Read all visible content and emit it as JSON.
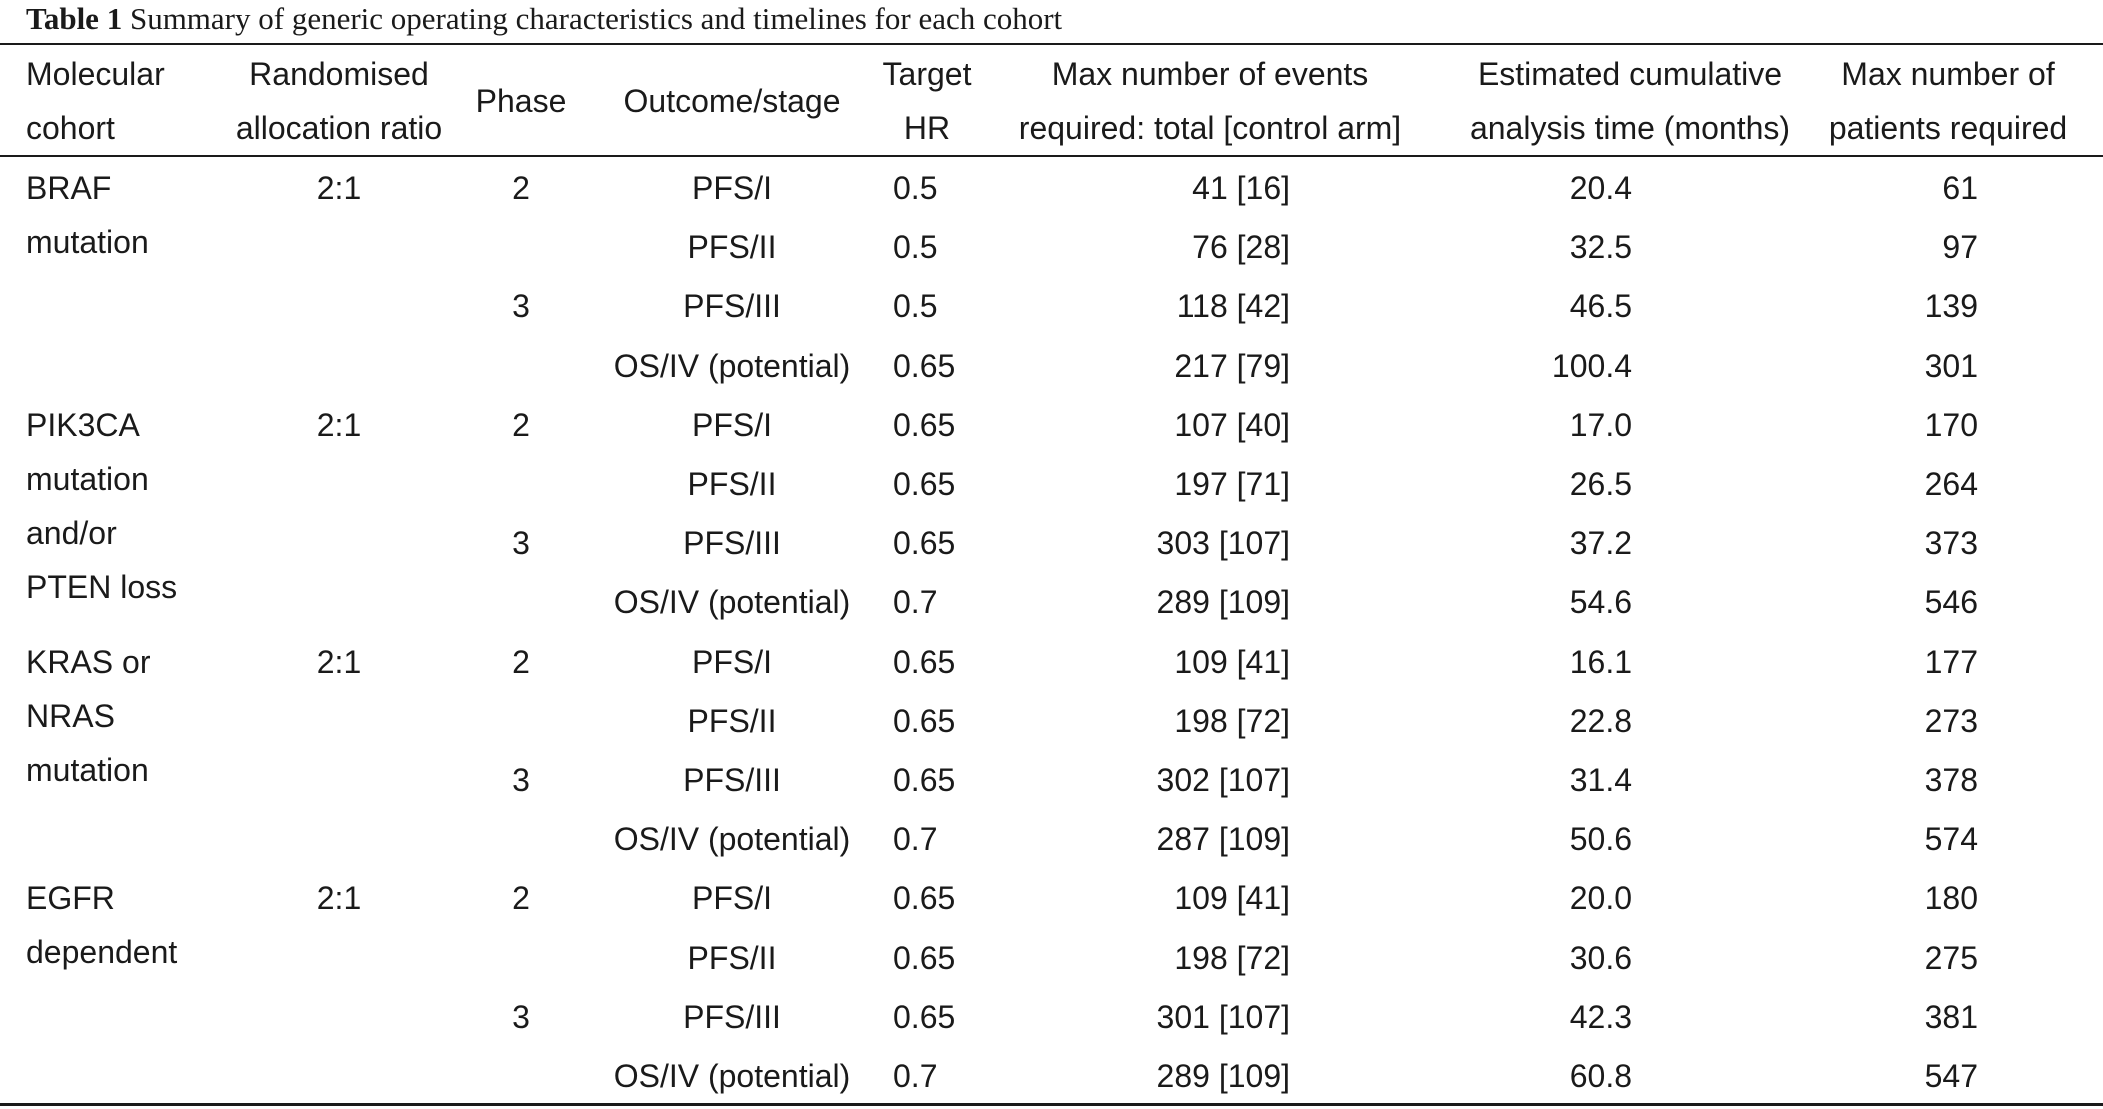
{
  "caption": {
    "label": "Table 1",
    "text": "Summary of generic operating characteristics and timelines for each cohort"
  },
  "headers": {
    "cohort": [
      "Molecular",
      "cohort"
    ],
    "ratio": [
      "Randomised",
      "allocation ratio"
    ],
    "phase": "Phase",
    "outcome": "Outcome/stage",
    "hr": [
      "Target",
      "HR"
    ],
    "events": [
      "Max number of events",
      "required: total [control arm]"
    ],
    "time": [
      "Estimated cumulative",
      "analysis time (months)"
    ],
    "patients": [
      "Max number of",
      "patients required"
    ]
  },
  "groups": [
    {
      "cohort": [
        "BRAF",
        "mutation"
      ],
      "ratio": "2:1",
      "rows": [
        {
          "phase": "2",
          "outcome": "PFS/I",
          "hr": "0.5",
          "events": "41 [16]",
          "time": "20.4",
          "patients": "61"
        },
        {
          "phase": "",
          "outcome": "PFS/II",
          "hr": "0.5",
          "events": "76 [28]",
          "time": "32.5",
          "patients": "97"
        },
        {
          "phase": "3",
          "outcome": "PFS/III",
          "hr": "0.5",
          "events": "118 [42]",
          "time": "46.5",
          "patients": "139"
        },
        {
          "phase": "",
          "outcome": "OS/IV (potential)",
          "hr": "0.65",
          "events": "217 [79]",
          "time": "100.4",
          "patients": "301"
        }
      ]
    },
    {
      "cohort": [
        "PIK3CA",
        "mutation",
        "and/or",
        "PTEN loss"
      ],
      "ratio": "2:1",
      "rows": [
        {
          "phase": "2",
          "outcome": "PFS/I",
          "hr": "0.65",
          "events": "107 [40]",
          "time": "17.0",
          "patients": "170"
        },
        {
          "phase": "",
          "outcome": "PFS/II",
          "hr": "0.65",
          "events": "197 [71]",
          "time": "26.5",
          "patients": "264"
        },
        {
          "phase": "3",
          "outcome": "PFS/III",
          "hr": "0.65",
          "events": "303 [107]",
          "time": "37.2",
          "patients": "373"
        },
        {
          "phase": "",
          "outcome": "OS/IV (potential)",
          "hr": "0.7",
          "events": "289 [109]",
          "time": "54.6",
          "patients": "546"
        }
      ]
    },
    {
      "cohort": [
        "KRAS or",
        "NRAS",
        "mutation"
      ],
      "ratio": "2:1",
      "rows": [
        {
          "phase": "2",
          "outcome": "PFS/I",
          "hr": "0.65",
          "events": "109 [41]",
          "time": "16.1",
          "patients": "177"
        },
        {
          "phase": "",
          "outcome": "PFS/II",
          "hr": "0.65",
          "events": "198 [72]",
          "time": "22.8",
          "patients": "273"
        },
        {
          "phase": "3",
          "outcome": "PFS/III",
          "hr": "0.65",
          "events": "302 [107]",
          "time": "31.4",
          "patients": "378"
        },
        {
          "phase": "",
          "outcome": "OS/IV (potential)",
          "hr": "0.7",
          "events": "287 [109]",
          "time": "50.6",
          "patients": "574"
        }
      ]
    },
    {
      "cohort": [
        "EGFR",
        "dependent"
      ],
      "ratio": "2:1",
      "rows": [
        {
          "phase": "2",
          "outcome": "PFS/I",
          "hr": "0.65",
          "events": "109 [41]",
          "time": "20.0",
          "patients": "180"
        },
        {
          "phase": "",
          "outcome": "PFS/II",
          "hr": "0.65",
          "events": "198 [72]",
          "time": "30.6",
          "patients": "275"
        },
        {
          "phase": "3",
          "outcome": "PFS/III",
          "hr": "0.65",
          "events": "301 [107]",
          "time": "42.3",
          "patients": "381"
        },
        {
          "phase": "",
          "outcome": "OS/IV (potential)",
          "hr": "0.7",
          "events": "289 [109]",
          "time": "60.8",
          "patients": "547"
        }
      ]
    }
  ]
}
